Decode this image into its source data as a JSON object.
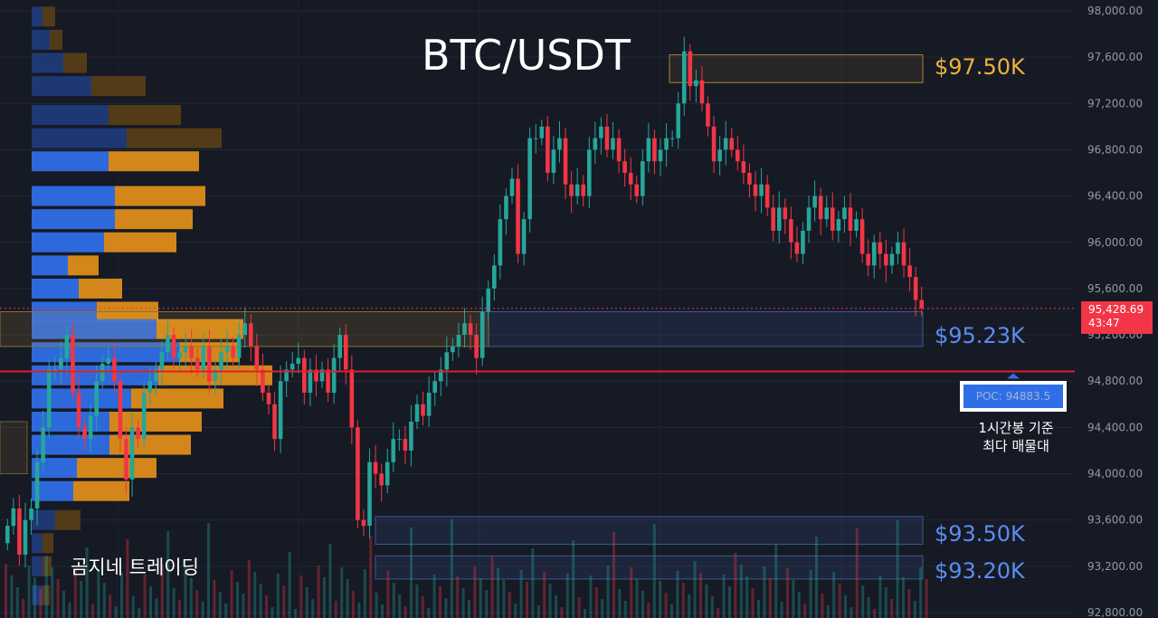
{
  "title": "BTC/USDT",
  "brand": "곰지네 트레이딩",
  "levels": {
    "l1": "$97.50K",
    "l2": "$95.23K",
    "l3": "$93.50K",
    "l4": "$93.20K"
  },
  "poc": {
    "label": "POC: 94883.5",
    "note_line1": "1시간봉 기준",
    "note_line2": "최다 매물대"
  },
  "last_price": {
    "price": "95,428.69",
    "countdown": "43:47"
  },
  "colors": {
    "background": "#161a25",
    "up": "#26a69a",
    "down": "#f23645",
    "gold_level": "#f0b23a",
    "blue_level": "#5b8def",
    "vp_blue": "#2f6ee6",
    "vp_orange": "#e8921a"
  },
  "chart_data": {
    "type": "candlestick",
    "y_axis": {
      "min": 92800,
      "max": 98000,
      "ticks": [
        "98,000.00",
        "97,600.00",
        "97,200.00",
        "96,800.00",
        "96,400.00",
        "96,000.00",
        "95,600.00",
        "95,200.00",
        "94,800.00",
        "94,400.00",
        "94,000.00",
        "93,600.00",
        "93,200.00",
        "92,800.00"
      ],
      "tick_values": [
        98000,
        97600,
        97200,
        96800,
        96400,
        96000,
        95600,
        95200,
        94800,
        94400,
        94000,
        93600,
        93200,
        92800
      ]
    },
    "poc_price": 94883.5,
    "current_price": 95428.69,
    "zones": [
      {
        "name": "97.5K",
        "from": 97380,
        "to": 97620,
        "style": "gold"
      },
      {
        "name": "95.23K",
        "from": 95100,
        "to": 95400,
        "style": "blue"
      },
      {
        "name": "93.50K",
        "from": 93390,
        "to": 93630,
        "style": "blue"
      },
      {
        "name": "93.20K",
        "from": 93090,
        "to": 93290,
        "style": "blue"
      }
    ],
    "candles_close": [
      93550,
      93700,
      93300,
      93600,
      93700,
      94100,
      94400,
      94900,
      94900,
      95000,
      95200,
      94700,
      94400,
      94300,
      94500,
      94800,
      94950,
      95000,
      94800,
      94300,
      93950,
      94400,
      94300,
      94700,
      94800,
      94900,
      95050,
      95200,
      95000,
      95050,
      95100,
      95000,
      94900,
      95100,
      94800,
      94900,
      95050,
      95100,
      95000,
      95200,
      95300,
      95100,
      94900,
      94700,
      94600,
      94300,
      94800,
      94900,
      94950,
      95000,
      94700,
      94900,
      94800,
      94900,
      94700,
      95000,
      95200,
      94900,
      94400,
      93600,
      93550,
      94100,
      94000,
      93900,
      94100,
      94300,
      94300,
      94200,
      94450,
      94600,
      94500,
      94700,
      94800,
      94900,
      95050,
      95100,
      95200,
      95300,
      95200,
      95000,
      95400,
      95600,
      95800,
      96200,
      96400,
      96550,
      95900,
      96200,
      96900,
      96900,
      97000,
      96600,
      96800,
      96900,
      96500,
      96400,
      96500,
      96400,
      96800,
      96900,
      97000,
      96800,
      96900,
      96700,
      96600,
      96500,
      96400,
      96700,
      96900,
      96700,
      96800,
      96900,
      96900,
      97200,
      97650,
      97350,
      97400,
      97200,
      97000,
      96700,
      96800,
      96900,
      96800,
      96700,
      96600,
      96500,
      96400,
      96500,
      96300,
      96100,
      96300,
      96200,
      96000,
      95900,
      96100,
      96300,
      96400,
      96200,
      96300,
      96100,
      96200,
      96300,
      96100,
      96200,
      95900,
      95800,
      96000,
      95900,
      95800,
      95900,
      96000,
      95800,
      95700,
      95500,
      95429
    ]
  }
}
